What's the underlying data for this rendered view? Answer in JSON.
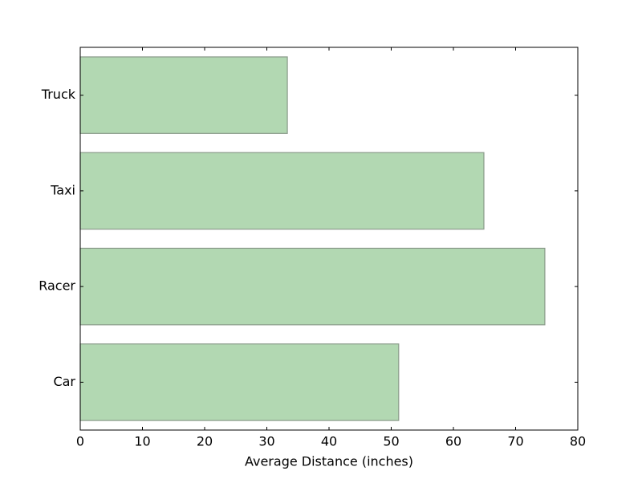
{
  "chart_data": {
    "type": "barh",
    "xlabel": "Average Distance (inches)",
    "categories": [
      "Car",
      "Racer",
      "Taxi",
      "Truck"
    ],
    "values": [
      51.2,
      74.7,
      64.9,
      33.3
    ],
    "color": "#b2d8b2",
    "edgecolor": "#8a9a8a",
    "xlim": [
      0,
      80
    ],
    "xticks": [
      0,
      10,
      20,
      30,
      40,
      50,
      60,
      70,
      80
    ]
  }
}
